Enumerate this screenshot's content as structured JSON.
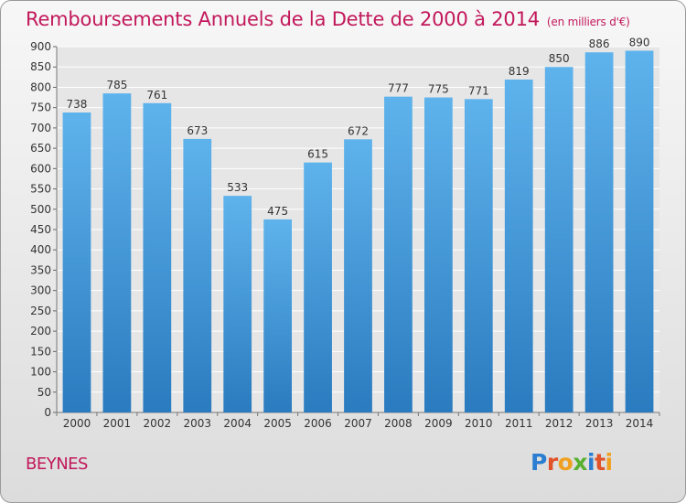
{
  "title": "Remboursements Annuels de la Dette de 2000 à 2014",
  "subtitle": "(en milliers d'€)",
  "city": "BEYNES",
  "logo": {
    "letters": [
      "P",
      "r",
      "o",
      "x",
      "i",
      "t",
      "i"
    ],
    "colors": [
      "#2a7dd1",
      "#e0522a",
      "#f0a020",
      "#58b030",
      "#2a7dd1",
      "#e0522a",
      "#f0a020"
    ]
  },
  "colors": {
    "title": "#c2185b",
    "bar_light": "#5fb3ec",
    "bar_dark": "#2a7bbf",
    "grid": "#ffffff",
    "axis_text": "#333333"
  },
  "chart_data": {
    "type": "bar",
    "categories": [
      "2000",
      "2001",
      "2002",
      "2003",
      "2004",
      "2005",
      "2006",
      "2007",
      "2008",
      "2009",
      "2010",
      "2011",
      "2012",
      "2013",
      "2014"
    ],
    "values": [
      738,
      785,
      761,
      673,
      533,
      475,
      615,
      672,
      777,
      775,
      771,
      819,
      850,
      886,
      890
    ],
    "ylim": [
      0,
      900
    ],
    "yticks": [
      0,
      50,
      100,
      150,
      200,
      250,
      300,
      350,
      400,
      450,
      500,
      550,
      600,
      650,
      700,
      750,
      800,
      850,
      900
    ],
    "grid": true
  }
}
